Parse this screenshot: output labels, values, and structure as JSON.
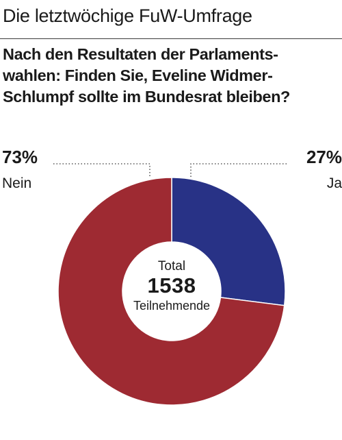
{
  "header": {
    "kicker": "Die letztwöchige FuW-Umfrage",
    "question_lines": [
      "Nach den Resultaten der Parlaments-",
      "wahlen: Finden Sie, Eveline Widmer-",
      "Schlumpf sollte im Bundesrat bleiben?"
    ]
  },
  "chart_data": {
    "type": "pie",
    "categories": [
      "Nein",
      "Ja"
    ],
    "values": [
      73,
      27
    ],
    "value_labels": [
      "73%",
      "27%"
    ],
    "colors": [
      "#9e2a32",
      "#283286"
    ],
    "donut": true,
    "center": {
      "label": "Total",
      "value": "1538",
      "unit": "Teilnehmende"
    }
  }
}
